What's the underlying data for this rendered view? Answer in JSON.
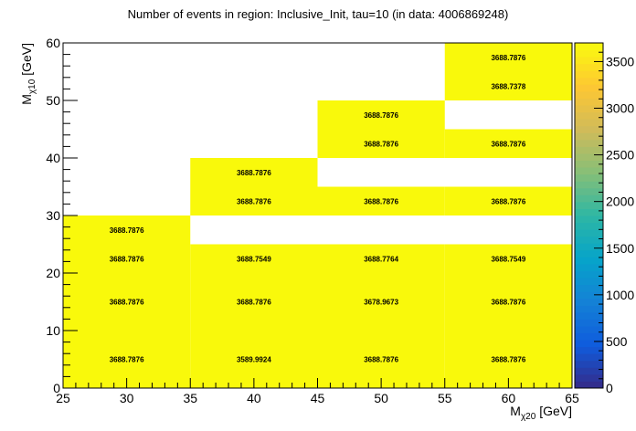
{
  "chart_data": {
    "type": "heatmap",
    "title": "Number of events in region: Inclusive_Init, tau=10 (in data: 4006869248)",
    "xlabel": "M_{χ20} [GeV]",
    "ylabel": "M_{χ10} [GeV]",
    "xlim": [
      25,
      65
    ],
    "ylim": [
      0,
      60
    ],
    "x_ticks": [
      "25",
      "30",
      "35",
      "40",
      "45",
      "50",
      "55",
      "60",
      "65"
    ],
    "y_ticks": [
      "0",
      "10",
      "20",
      "30",
      "40",
      "50",
      "60"
    ],
    "zlim": [
      0,
      3700
    ],
    "z_ticks": [
      "0",
      "500",
      "1000",
      "1500",
      "2000",
      "2500",
      "3000",
      "3500"
    ],
    "cell_color": "#f9f90b",
    "colormap": [
      "#352a87",
      "#0f5cdd",
      "#1481d6",
      "#06a4ca",
      "#2eb7a4",
      "#87bf77",
      "#d1bb59",
      "#fec832",
      "#f9fb0e"
    ],
    "cells": [
      {
        "x0": 25,
        "x1": 35,
        "y0": 0,
        "y1": 10,
        "value": 3688.7876,
        "label": "3688.7876"
      },
      {
        "x0": 35,
        "x1": 45,
        "y0": 0,
        "y1": 10,
        "value": 3589.9924,
        "label": "3589.9924"
      },
      {
        "x0": 45,
        "x1": 55,
        "y0": 0,
        "y1": 10,
        "value": 3688.7876,
        "label": "3688.7876"
      },
      {
        "x0": 55,
        "x1": 65,
        "y0": 0,
        "y1": 10,
        "value": 3688.7876,
        "label": "3688.7876"
      },
      {
        "x0": 25,
        "x1": 35,
        "y0": 10,
        "y1": 20,
        "value": 3688.7876,
        "label": "3688.7876"
      },
      {
        "x0": 35,
        "x1": 45,
        "y0": 10,
        "y1": 20,
        "value": 3688.7876,
        "label": "3688.7876"
      },
      {
        "x0": 45,
        "x1": 55,
        "y0": 10,
        "y1": 20,
        "value": 3678.9673,
        "label": "3678.9673"
      },
      {
        "x0": 55,
        "x1": 65,
        "y0": 10,
        "y1": 20,
        "value": 3688.7876,
        "label": "3688.7876"
      },
      {
        "x0": 25,
        "x1": 35,
        "y0": 20,
        "y1": 25,
        "value": 3688.7876,
        "label": "3688.7876"
      },
      {
        "x0": 35,
        "x1": 45,
        "y0": 20,
        "y1": 25,
        "value": 3688.7549,
        "label": "3688.7549"
      },
      {
        "x0": 45,
        "x1": 55,
        "y0": 20,
        "y1": 25,
        "value": 3688.7764,
        "label": "3688.7764"
      },
      {
        "x0": 55,
        "x1": 65,
        "y0": 20,
        "y1": 25,
        "value": 3688.7549,
        "label": "3688.7549"
      },
      {
        "x0": 25,
        "x1": 35,
        "y0": 25,
        "y1": 30,
        "value": 3688.7876,
        "label": "3688.7876"
      },
      {
        "x0": 35,
        "x1": 45,
        "y0": 30,
        "y1": 35,
        "value": 3688.7876,
        "label": "3688.7876"
      },
      {
        "x0": 45,
        "x1": 55,
        "y0": 30,
        "y1": 35,
        "value": 3688.7876,
        "label": "3688.7876"
      },
      {
        "x0": 55,
        "x1": 65,
        "y0": 30,
        "y1": 35,
        "value": 3688.7876,
        "label": "3688.7876"
      },
      {
        "x0": 35,
        "x1": 45,
        "y0": 35,
        "y1": 40,
        "value": 3688.7876,
        "label": "3688.7876"
      },
      {
        "x0": 45,
        "x1": 55,
        "y0": 40,
        "y1": 45,
        "value": 3688.7876,
        "label": "3688.7876"
      },
      {
        "x0": 55,
        "x1": 65,
        "y0": 40,
        "y1": 45,
        "value": 3688.7876,
        "label": "3688.7876"
      },
      {
        "x0": 45,
        "x1": 55,
        "y0": 45,
        "y1": 50,
        "value": 3688.7876,
        "label": "3688.7876"
      },
      {
        "x0": 55,
        "x1": 65,
        "y0": 50,
        "y1": 55,
        "value": 3688.7378,
        "label": "3688.7378"
      },
      {
        "x0": 55,
        "x1": 65,
        "y0": 55,
        "y1": 60,
        "value": 3688.7876,
        "label": "3688.7876"
      }
    ]
  }
}
